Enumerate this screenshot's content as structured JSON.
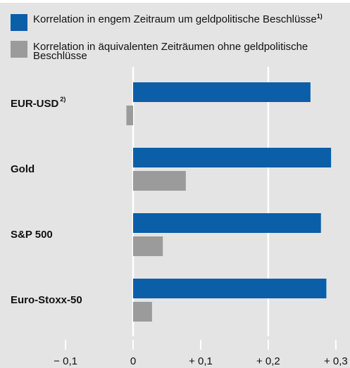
{
  "chart_data": {
    "type": "hbar",
    "categories": [
      "EUR-USD",
      "Gold",
      "S&P 500",
      "Euro-Stoxx-50"
    ],
    "category_notes": [
      "2)",
      null,
      null,
      null
    ],
    "series": [
      {
        "name": "Korrelation in engem Zeitraum um geldpolitische Beschlüsse",
        "note": "1)",
        "color": "#0b5ea8",
        "values": [
          0.2625,
          0.293,
          0.278,
          0.286
        ]
      },
      {
        "name": "Korrelation in äquivalenten Zeiträumen ohne geldpolitische Beschlüsse",
        "color": "#9b9b9b",
        "values": [
          -0.01,
          0.078,
          0.044,
          0.028
        ]
      }
    ],
    "xlim": [
      -0.197,
      0.321
    ],
    "xticks": [
      {
        "value": -0.1,
        "label": "− 0,1"
      },
      0,
      {
        "value": 0.1,
        "label": "+ 0,1"
      },
      {
        "value": 0.2,
        "label": "+ 0,2"
      },
      {
        "value": 0.3,
        "label": "+ 0,3"
      }
    ],
    "xgrid": [
      0,
      0.2
    ]
  }
}
